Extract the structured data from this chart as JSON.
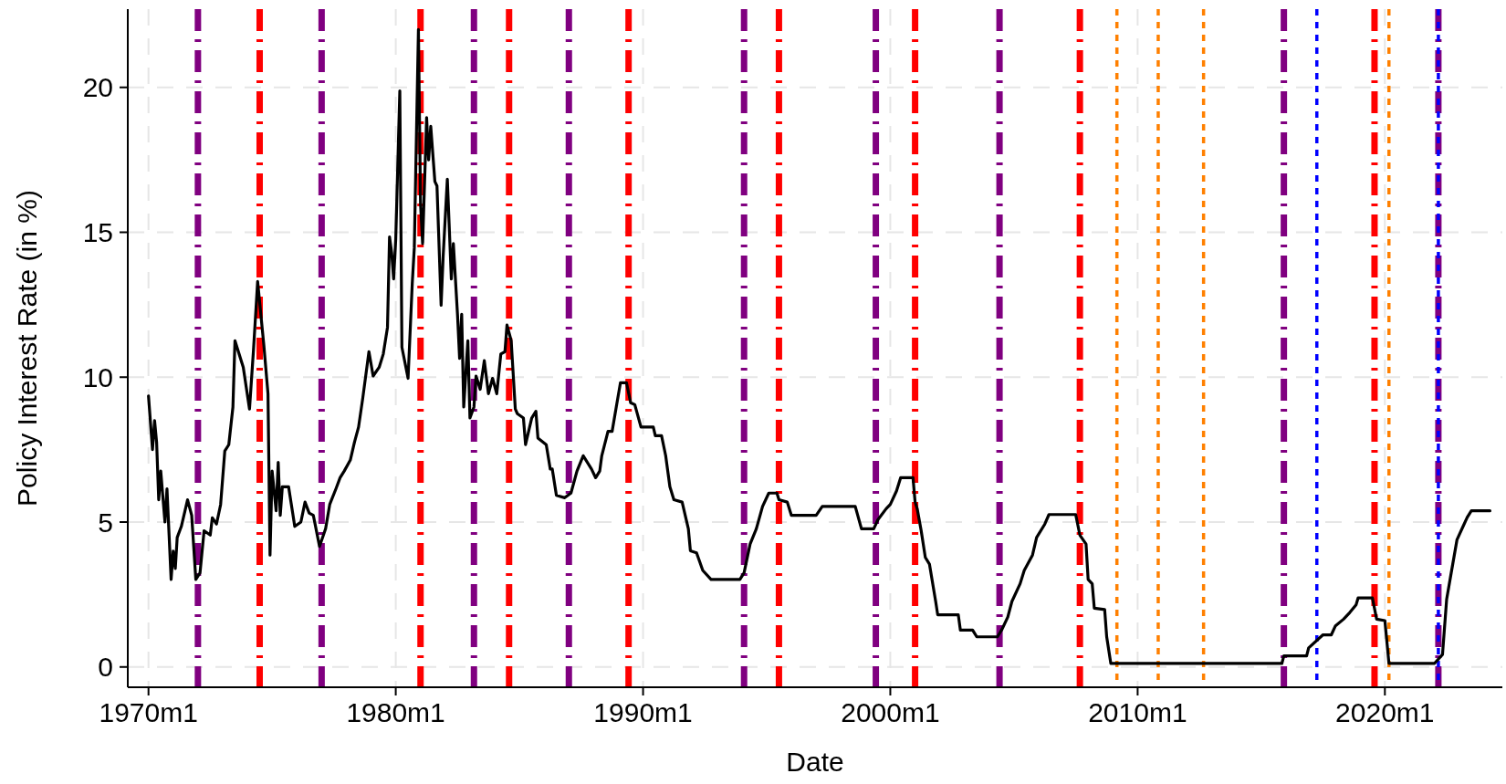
{
  "chart_data": {
    "type": "line",
    "xlabel": "Date",
    "ylabel": "Policy Interest Rate (in %)",
    "xlim": [
      "1969-03",
      "2024-10"
    ],
    "ylim": [
      -0.7,
      22.7
    ],
    "xticks": [
      {
        "value": "1970-01",
        "label": "1970m1"
      },
      {
        "value": "1980-01",
        "label": "1980m1"
      },
      {
        "value": "1990-01",
        "label": "1990m1"
      },
      {
        "value": "2000-01",
        "label": "2000m1"
      },
      {
        "value": "2010-01",
        "label": "2010m1"
      },
      {
        "value": "2020-01",
        "label": "2020m1"
      }
    ],
    "yticks": [
      0,
      5,
      10,
      15,
      20
    ],
    "grid": true,
    "line_style": "solid",
    "marker": "none",
    "series": [
      {
        "color": "#000000",
        "x": [
          "1970-01",
          "1970-03",
          "1970-04",
          "1970-05",
          "1970-06",
          "1970-07",
          "1970-09",
          "1970-10",
          "1970-12",
          "1971-01",
          "1971-02",
          "1971-03",
          "1971-05",
          "1971-08",
          "1971-10",
          "1971-12",
          "1972-02",
          "1972-04",
          "1972-07",
          "1972-08",
          "1972-10",
          "1972-12",
          "1973-02",
          "1973-04",
          "1973-06",
          "1973-07",
          "1973-11",
          "1974-02",
          "1974-04",
          "1974-06",
          "1974-09",
          "1974-11",
          "1974-12",
          "1975-01",
          "1975-03",
          "1975-04",
          "1975-05",
          "1975-06",
          "1975-09",
          "1975-11",
          "1975-12",
          "1976-03",
          "1976-05",
          "1976-07",
          "1976-09",
          "1976-12",
          "1977-03",
          "1977-05",
          "1977-08",
          "1977-10",
          "1977-12",
          "1978-03",
          "1978-05",
          "1978-07",
          "1978-09",
          "1978-12",
          "1979-02",
          "1979-05",
          "1979-07",
          "1979-09",
          "1979-10",
          "1979-11",
          "1979-12",
          "1980-01",
          "1980-03",
          "1980-04",
          "1980-07",
          "1980-09",
          "1980-10",
          "1980-12",
          "1981-01",
          "1981-02",
          "1981-04",
          "1981-05",
          "1981-06",
          "1981-08",
          "1981-09",
          "1981-11",
          "1981-12",
          "1982-02",
          "1982-04",
          "1982-05",
          "1982-07",
          "1982-08",
          "1982-09",
          "1982-10",
          "1982-12",
          "1983-01",
          "1983-03",
          "1983-04",
          "1983-06",
          "1983-08",
          "1983-10",
          "1983-12",
          "1984-02",
          "1984-04",
          "1984-06",
          "1984-07",
          "1984-09",
          "1984-11",
          "1984-12",
          "1985-03",
          "1985-04",
          "1985-07",
          "1985-09",
          "1985-10",
          "1986-02",
          "1986-04",
          "1986-05",
          "1986-07",
          "1986-11",
          "1987-02",
          "1987-05",
          "1987-08",
          "1987-12",
          "1988-02",
          "1988-04",
          "1988-05",
          "1988-08",
          "1988-10",
          "1988-12",
          "1989-02",
          "1989-05",
          "1989-07",
          "1989-09",
          "1989-12",
          "1990-06",
          "1990-07",
          "1990-10",
          "1990-12",
          "1991-02",
          "1991-04",
          "1991-08",
          "1991-11",
          "1991-12",
          "1992-03",
          "1992-06",
          "1992-10",
          "1993-12",
          "1994-02",
          "1994-05",
          "1994-08",
          "1994-11",
          "1995-02",
          "1995-06",
          "1995-07",
          "1995-11",
          "1996-01",
          "1997-01",
          "1997-04",
          "1998-08",
          "1998-11",
          "1999-05",
          "1999-07",
          "1999-11",
          "2000-01",
          "2000-04",
          "2000-06",
          "2000-12",
          "2001-01",
          "2001-02",
          "2001-04",
          "2001-06",
          "2001-08",
          "2001-11",
          "2001-12",
          "2002-10",
          "2002-11",
          "2003-05",
          "2003-07",
          "2004-05",
          "2004-07",
          "2004-10",
          "2004-12",
          "2005-04",
          "2005-06",
          "2005-10",
          "2005-12",
          "2006-04",
          "2006-06",
          "2007-07",
          "2007-09",
          "2007-12",
          "2008-01",
          "2008-03",
          "2008-04",
          "2008-09",
          "2008-10",
          "2008-12",
          "2015-11",
          "2015-12",
          "2016-11",
          "2016-12",
          "2017-07",
          "2017-11",
          "2018-01",
          "2018-05",
          "2018-08",
          "2018-11",
          "2018-12",
          "2019-07",
          "2019-09",
          "2020-01",
          "2020-03",
          "2022-01",
          "2022-05",
          "2022-07",
          "2022-09",
          "2022-12",
          "2023-03",
          "2023-05",
          "2023-07",
          "2024-04"
        ],
        "values": [
          9.35,
          7.5,
          8.5,
          7.75,
          5.77,
          6.76,
          5.0,
          6.15,
          3.02,
          4.0,
          3.4,
          4.47,
          4.85,
          5.77,
          5.23,
          3.02,
          3.25,
          4.7,
          4.55,
          5.15,
          4.93,
          5.6,
          7.45,
          7.67,
          8.97,
          11.26,
          10.34,
          8.9,
          10.95,
          13.3,
          11.1,
          9.43,
          3.86,
          6.76,
          5.39,
          7.06,
          5.23,
          6.22,
          6.22,
          5.31,
          4.85,
          5.0,
          5.69,
          5.31,
          5.23,
          4.16,
          4.77,
          5.61,
          6.15,
          6.53,
          6.76,
          7.14,
          7.75,
          8.28,
          9.28,
          10.88,
          10.04,
          10.34,
          10.8,
          11.72,
          14.84,
          14.3,
          13.39,
          14.77,
          19.88,
          11.03,
          9.96,
          13.24,
          14.46,
          22.0,
          15.99,
          14.61,
          18.96,
          17.5,
          18.66,
          16.75,
          16.6,
          12.48,
          14.16,
          16.83,
          13.39,
          14.61,
          12.17,
          10.65,
          12.17,
          8.97,
          11.26,
          8.59,
          8.97,
          10.04,
          9.58,
          10.57,
          9.43,
          9.96,
          9.43,
          10.8,
          10.88,
          11.8,
          11.26,
          8.9,
          8.74,
          8.59,
          7.67,
          8.59,
          8.82,
          7.9,
          7.67,
          6.83,
          6.83,
          5.92,
          5.84,
          6.0,
          6.76,
          7.29,
          6.83,
          6.53,
          6.76,
          7.29,
          8.13,
          8.13,
          8.97,
          9.81,
          9.81,
          9.12,
          9.05,
          8.28,
          8.28,
          7.98,
          7.98,
          7.29,
          6.22,
          5.77,
          5.69,
          4.77,
          4.01,
          3.94,
          3.33,
          3.02,
          3.02,
          3.25,
          4.24,
          4.77,
          5.54,
          6.0,
          6.0,
          5.77,
          5.69,
          5.23,
          5.23,
          5.54,
          5.54,
          4.77,
          4.77,
          5.08,
          5.46,
          5.61,
          6.07,
          6.53,
          6.53,
          5.69,
          5.46,
          4.7,
          3.78,
          3.55,
          2.26,
          1.8,
          1.8,
          1.27,
          1.27,
          1.04,
          1.04,
          1.27,
          1.72,
          2.26,
          2.87,
          3.33,
          3.86,
          4.47,
          4.93,
          5.26,
          5.26,
          4.55,
          4.24,
          3.02,
          2.87,
          2.03,
          1.98,
          1.04,
          0.12,
          0.12,
          0.38,
          0.38,
          0.66,
          1.11,
          1.11,
          1.42,
          1.65,
          1.88,
          2.14,
          2.38,
          2.38,
          1.65,
          1.6,
          0.12,
          0.12,
          0.43,
          2.33,
          3.17,
          4.39,
          4.85,
          5.16,
          5.39,
          5.39
        ]
      }
    ],
    "ref_lines": [
      {
        "axis": "x",
        "value": "1972-01",
        "color": "#800080",
        "line_style": "dashed"
      },
      {
        "axis": "x",
        "value": "1974-07",
        "color": "#ff0000",
        "line_style": "dashed"
      },
      {
        "axis": "x",
        "value": "1977-01",
        "color": "#800080",
        "line_style": "dashed"
      },
      {
        "axis": "x",
        "value": "1981-01",
        "color": "#ff0000",
        "line_style": "dashed"
      },
      {
        "axis": "x",
        "value": "1983-03",
        "color": "#800080",
        "line_style": "dashed"
      },
      {
        "axis": "x",
        "value": "1984-08",
        "color": "#ff0000",
        "line_style": "dashed"
      },
      {
        "axis": "x",
        "value": "1987-01",
        "color": "#800080",
        "line_style": "dashed"
      },
      {
        "axis": "x",
        "value": "1989-06",
        "color": "#ff0000",
        "line_style": "dashed"
      },
      {
        "axis": "x",
        "value": "1994-02",
        "color": "#800080",
        "line_style": "dashed"
      },
      {
        "axis": "x",
        "value": "1995-07",
        "color": "#ff0000",
        "line_style": "dashed"
      },
      {
        "axis": "x",
        "value": "1999-06",
        "color": "#800080",
        "line_style": "dashed"
      },
      {
        "axis": "x",
        "value": "2001-01",
        "color": "#ff0000",
        "line_style": "dashed"
      },
      {
        "axis": "x",
        "value": "2004-06",
        "color": "#800080",
        "line_style": "dashed"
      },
      {
        "axis": "x",
        "value": "2007-09",
        "color": "#ff0000",
        "line_style": "dashed"
      },
      {
        "axis": "x",
        "value": "2009-03",
        "color": "#ff8000",
        "line_style": "dotted"
      },
      {
        "axis": "x",
        "value": "2010-11",
        "color": "#ff8000",
        "line_style": "dotted"
      },
      {
        "axis": "x",
        "value": "2012-09",
        "color": "#ff8000",
        "line_style": "dotted"
      },
      {
        "axis": "x",
        "value": "2015-12",
        "color": "#800080",
        "line_style": "dashed"
      },
      {
        "axis": "x",
        "value": "2017-04",
        "color": "#0000ff",
        "line_style": "dotted"
      },
      {
        "axis": "x",
        "value": "2019-08",
        "color": "#ff0000",
        "line_style": "dashed"
      },
      {
        "axis": "x",
        "value": "2020-03",
        "color": "#ff8000",
        "line_style": "dotted"
      },
      {
        "axis": "x",
        "value": "2022-03",
        "color": "#800080",
        "line_style": "dashed"
      },
      {
        "axis": "x",
        "value": "2022-03",
        "color": "#0000ff",
        "line_style": "dotted"
      }
    ]
  }
}
